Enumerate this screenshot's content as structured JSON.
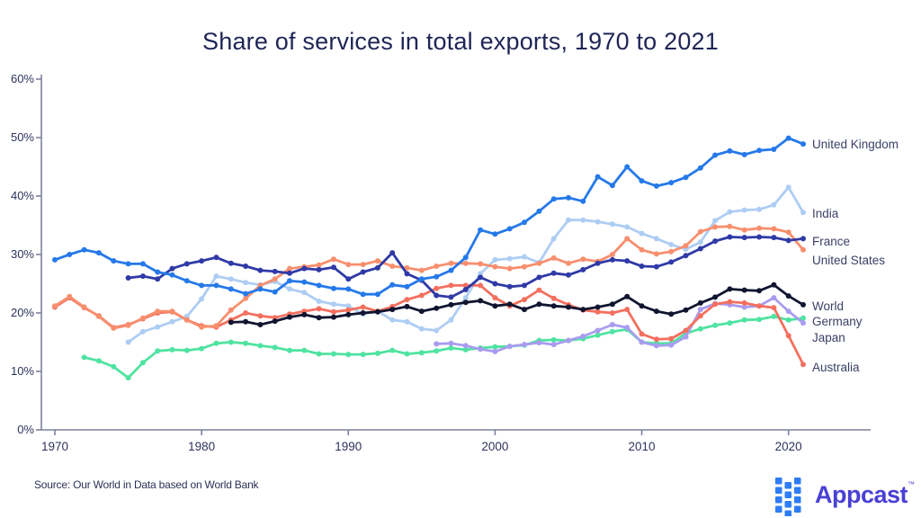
{
  "title": "Share of services in total exports, 1970 to 2021",
  "source_note": "Source: Our World in Data based on World Bank",
  "logo": {
    "text": "Appcast",
    "tm": "™",
    "icon_color": "#2e7cf6",
    "text_color": "#4940d4"
  },
  "chart_data": {
    "type": "line",
    "title": "Share of services in total exports, 1970 to 2021",
    "xlabel": "",
    "ylabel": "",
    "xlim": [
      1970,
      2021
    ],
    "ylim": [
      0,
      60
    ],
    "grid": false,
    "legend_position": "right-of-line-ends",
    "y_ticks": [
      {
        "value": 0,
        "label": "0%"
      },
      {
        "value": 10,
        "label": "10%"
      },
      {
        "value": 20,
        "label": "20%"
      },
      {
        "value": 30,
        "label": "30%"
      },
      {
        "value": 40,
        "label": "40%"
      },
      {
        "value": 50,
        "label": "50%"
      },
      {
        "value": 60,
        "label": "60%"
      }
    ],
    "x_ticks": [
      {
        "value": 1970,
        "label": "1970"
      },
      {
        "value": 1980,
        "label": "1980"
      },
      {
        "value": 1990,
        "label": "1990"
      },
      {
        "value": 2000,
        "label": "2000"
      },
      {
        "value": 2010,
        "label": "2010"
      },
      {
        "value": 2020,
        "label": "2020"
      }
    ],
    "series": [
      {
        "name": "India",
        "color": "#aecdf3",
        "start_year": 1975,
        "label_dy": 2,
        "values": [
          15.0,
          16.8,
          17.6,
          18.5,
          19.4,
          22.4,
          26.3,
          25.8,
          25.2,
          24.8,
          25.4,
          24.1,
          23.5,
          22.0,
          21.5,
          21.2,
          19.8,
          20.3,
          18.8,
          18.5,
          17.3,
          17.0,
          18.8,
          22.6,
          26.7,
          29.1,
          29.3,
          29.6,
          28.6,
          32.7,
          35.9,
          35.9,
          35.6,
          35.2,
          34.7,
          33.6,
          32.7,
          31.7,
          30.9,
          32.1,
          35.8,
          37.3,
          37.6,
          37.7,
          38.5,
          41.5,
          37.2
        ]
      },
      {
        "name": "Germany",
        "color": "#4fe3a1",
        "start_year": 1972,
        "label_dy": 4,
        "values": [
          12.4,
          11.8,
          10.8,
          8.9,
          11.5,
          13.5,
          13.7,
          13.6,
          13.9,
          14.8,
          15.0,
          14.8,
          14.4,
          14.1,
          13.6,
          13.6,
          13.0,
          13.0,
          12.9,
          12.9,
          13.1,
          13.6,
          13.0,
          13.2,
          13.5,
          14.0,
          13.7,
          14.0,
          14.2,
          14.3,
          14.5,
          15.3,
          15.4,
          15.3,
          15.6,
          16.2,
          16.8,
          17.2,
          15.0,
          14.8,
          14.8,
          16.5,
          17.3,
          17.9,
          18.3,
          18.8,
          18.9,
          19.4,
          18.8,
          19.1
        ]
      },
      {
        "name": "Japan",
        "color": "#a99cef",
        "start_year": 1996,
        "label_dy": 17,
        "values": [
          14.7,
          14.8,
          14.4,
          13.8,
          13.4,
          14.3,
          14.6,
          14.9,
          14.6,
          15.3,
          16.0,
          17.0,
          18.0,
          17.5,
          15.0,
          14.4,
          14.5,
          15.9,
          20.6,
          21.6,
          21.4,
          21.0,
          21.2,
          22.6,
          20.3,
          18.3
        ]
      },
      {
        "name": "Australia",
        "color": "#f3705f",
        "start_year": 1970,
        "label_dy": 4,
        "values": [
          21.0,
          22.6,
          20.9,
          19.5,
          17.5,
          18.0,
          19.0,
          20.0,
          20.2,
          18.8,
          17.8,
          17.6,
          18.8,
          20.0,
          19.5,
          19.2,
          19.8,
          20.3,
          20.7,
          20.2,
          20.5,
          21.0,
          20.3,
          21.1,
          22.3,
          23.0,
          24.2,
          24.7,
          24.7,
          24.7,
          22.6,
          21.2,
          22.3,
          23.9,
          22.5,
          21.4,
          20.5,
          20.2,
          20.0,
          20.6,
          16.4,
          15.5,
          15.6,
          17.0,
          19.5,
          21.5,
          21.9,
          21.7,
          21.2,
          20.9,
          16.1,
          11.2
        ]
      },
      {
        "name": "United States",
        "color": "#f78f6e",
        "start_year": 1970,
        "label_dy": 12,
        "values": [
          21.2,
          22.8,
          21.0,
          19.4,
          17.4,
          17.9,
          19.1,
          20.3,
          20.3,
          18.8,
          17.6,
          17.8,
          20.5,
          22.5,
          24.7,
          25.8,
          27.6,
          27.9,
          28.2,
          29.2,
          28.3,
          28.3,
          28.9,
          28.0,
          27.7,
          27.3,
          28.0,
          28.5,
          28.5,
          28.4,
          27.9,
          27.6,
          27.9,
          28.5,
          29.4,
          28.5,
          29.2,
          28.8,
          30.0,
          32.7,
          30.8,
          30.1,
          30.5,
          31.5,
          33.9,
          34.7,
          34.8,
          34.2,
          34.5,
          34.4,
          33.8,
          30.8
        ]
      },
      {
        "name": "France",
        "color": "#2f3aa6",
        "start_year": 1975,
        "label_dy": 4,
        "values": [
          26.0,
          26.3,
          25.8,
          27.6,
          28.4,
          28.9,
          29.5,
          28.5,
          28.0,
          27.3,
          27.1,
          26.8,
          27.6,
          27.4,
          27.8,
          25.8,
          27.0,
          27.7,
          30.3,
          26.7,
          25.6,
          23.0,
          22.7,
          24.0,
          26.1,
          25.0,
          24.5,
          24.7,
          26.1,
          26.8,
          26.5,
          27.4,
          28.5,
          29.1,
          28.9,
          28.0,
          27.9,
          28.7,
          29.8,
          31.0,
          32.3,
          33.0,
          32.9,
          33.0,
          32.9,
          32.4,
          32.7
        ]
      },
      {
        "name": "United Kingdom",
        "color": "#2579e8",
        "start_year": 1970,
        "label_dy": 1,
        "values": [
          29.1,
          30.0,
          30.8,
          30.3,
          28.9,
          28.4,
          28.4,
          27.0,
          26.5,
          25.5,
          24.7,
          24.7,
          24.1,
          23.3,
          24.1,
          23.6,
          25.5,
          25.3,
          24.7,
          24.2,
          24.1,
          23.2,
          23.2,
          24.8,
          24.5,
          25.8,
          26.2,
          27.3,
          29.5,
          34.2,
          33.5,
          34.4,
          35.5,
          37.4,
          39.5,
          39.7,
          39.1,
          43.3,
          41.8,
          45.0,
          42.6,
          41.7,
          42.3,
          43.2,
          44.8,
          47.0,
          47.7,
          47.1,
          47.8,
          48.0,
          49.9,
          48.9
        ]
      },
      {
        "name": "World",
        "color": "#11152f",
        "start_year": 1982,
        "label_dy": 2,
        "values": [
          18.4,
          18.5,
          18.0,
          18.6,
          19.3,
          19.7,
          19.2,
          19.3,
          19.7,
          20.0,
          20.2,
          20.6,
          21.1,
          20.3,
          20.8,
          21.4,
          21.8,
          22.1,
          21.2,
          21.5,
          20.6,
          21.5,
          21.2,
          21.0,
          20.6,
          21.0,
          21.5,
          22.8,
          21.2,
          20.3,
          19.8,
          20.5,
          21.7,
          22.7,
          24.1,
          23.9,
          23.8,
          24.8,
          22.9,
          21.4
        ]
      }
    ]
  }
}
